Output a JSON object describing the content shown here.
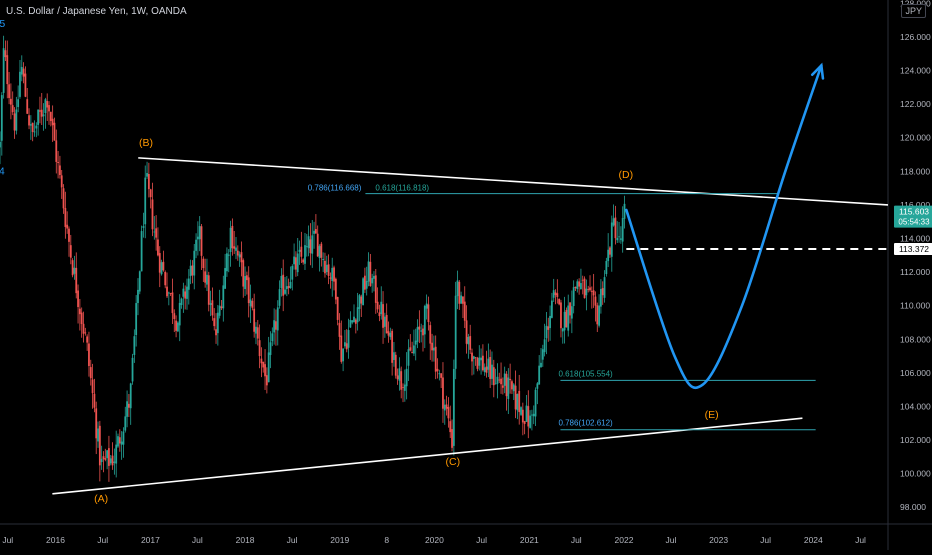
{
  "header": {
    "title": "U.S. Dollar / Japanese Yen, 1W, OANDA",
    "currency_badge": "JPY"
  },
  "chart_data": {
    "type": "candlestick",
    "title": "U.S. Dollar / Japanese Yen, 1W, OANDA",
    "ylim": [
      97.0,
      128.2
    ],
    "y_ticks": [
      98,
      100,
      102,
      104,
      106,
      108,
      110,
      112,
      114,
      116,
      118,
      120,
      122,
      124,
      126,
      128
    ],
    "y_tick_labels": [
      "98.000",
      "100.000",
      "102.000",
      "104.000",
      "106.000",
      "108.000",
      "110.000",
      "112.000",
      "114.000",
      "116.000",
      "118.000",
      "120.000",
      "122.000",
      "124.000",
      "126.000",
      "128.000"
    ],
    "xlim": [
      "2015-06-01",
      "2024-10-15"
    ],
    "x_ticks": [
      {
        "label": "Jul",
        "date": "2015-07-01"
      },
      {
        "label": "2016",
        "date": "2016-01-01"
      },
      {
        "label": "Jul",
        "date": "2016-07-01"
      },
      {
        "label": "2017",
        "date": "2017-01-01"
      },
      {
        "label": "Jul",
        "date": "2017-07-01"
      },
      {
        "label": "2018",
        "date": "2018-01-01"
      },
      {
        "label": "Jul",
        "date": "2018-07-01"
      },
      {
        "label": "2019",
        "date": "2019-01-01"
      },
      {
        "label": "8",
        "date": "2019-07-01"
      },
      {
        "label": "2020",
        "date": "2020-01-01"
      },
      {
        "label": "Jul",
        "date": "2020-07-01"
      },
      {
        "label": "2021",
        "date": "2021-01-01"
      },
      {
        "label": "Jul",
        "date": "2021-07-01"
      },
      {
        "label": "2022",
        "date": "2022-01-01"
      },
      {
        "label": "Jul",
        "date": "2022-07-01"
      },
      {
        "label": "2023",
        "date": "2023-01-01"
      },
      {
        "label": "Jul",
        "date": "2023-07-01"
      },
      {
        "label": "2024",
        "date": "2024-01-01"
      },
      {
        "label": "Jul",
        "date": "2024-07-01"
      }
    ],
    "price_path": [
      {
        "date": "2015-06-01",
        "price": 119.5
      },
      {
        "date": "2015-06-15",
        "price": 125.0
      },
      {
        "date": "2015-08-01",
        "price": 120.5
      },
      {
        "date": "2015-08-20",
        "price": 124.5
      },
      {
        "date": "2015-10-01",
        "price": 120.0
      },
      {
        "date": "2015-12-01",
        "price": 122.5
      },
      {
        "date": "2016-03-01",
        "price": 113.0
      },
      {
        "date": "2016-05-01",
        "price": 107.5
      },
      {
        "date": "2016-06-24",
        "price": 100.5
      },
      {
        "date": "2016-08-15",
        "price": 101.0
      },
      {
        "date": "2016-10-15",
        "price": 104.5
      },
      {
        "date": "2016-12-15",
        "price": 117.5
      },
      {
        "date": "2017-02-01",
        "price": 113.0
      },
      {
        "date": "2017-04-15",
        "price": 109.0
      },
      {
        "date": "2017-07-10",
        "price": 114.0
      },
      {
        "date": "2017-09-08",
        "price": 108.0
      },
      {
        "date": "2017-11-06",
        "price": 114.5
      },
      {
        "date": "2018-01-15",
        "price": 110.5
      },
      {
        "date": "2018-03-23",
        "price": 105.5
      },
      {
        "date": "2018-05-21",
        "price": 111.0
      },
      {
        "date": "2018-07-20",
        "price": 112.5
      },
      {
        "date": "2018-10-01",
        "price": 114.0
      },
      {
        "date": "2018-12-20",
        "price": 111.0
      },
      {
        "date": "2019-01-03",
        "price": 107.0
      },
      {
        "date": "2019-04-24",
        "price": 112.0
      },
      {
        "date": "2019-08-26",
        "price": 105.5
      },
      {
        "date": "2019-12-01",
        "price": 109.5
      },
      {
        "date": "2020-03-09",
        "price": 102.0
      },
      {
        "date": "2020-03-24",
        "price": 111.5
      },
      {
        "date": "2020-05-15",
        "price": 107.5
      },
      {
        "date": "2020-08-01",
        "price": 106.0
      },
      {
        "date": "2020-10-15",
        "price": 105.0
      },
      {
        "date": "2021-01-06",
        "price": 103.0
      },
      {
        "date": "2021-03-31",
        "price": 110.5
      },
      {
        "date": "2021-05-15",
        "price": 109.0
      },
      {
        "date": "2021-07-05",
        "price": 111.5
      },
      {
        "date": "2021-09-20",
        "price": 109.5
      },
      {
        "date": "2021-11-24",
        "price": 115.0
      },
      {
        "date": "2021-12-15",
        "price": 113.5
      },
      {
        "date": "2022-01-04",
        "price": 115.603
      }
    ],
    "labels_wave": [
      {
        "text": "5",
        "date": "2015-06-10",
        "price": 126.6,
        "color": "#2196f3"
      },
      {
        "text": "4",
        "date": "2015-06-08",
        "price": 117.8,
        "color": "#2196f3"
      },
      {
        "text": "(A)",
        "date": "2016-06-25",
        "price": 98.3,
        "color": "#ff9800"
      },
      {
        "text": "(B)",
        "date": "2016-12-15",
        "price": 119.5,
        "color": "#ff9800"
      },
      {
        "text": "(C)",
        "date": "2020-03-12",
        "price": 100.5,
        "color": "#ff9800"
      },
      {
        "text": "(D)",
        "date": "2022-01-08",
        "price": 117.6,
        "color": "#ff9800"
      },
      {
        "text": "(E)",
        "date": "2022-12-05",
        "price": 103.3,
        "color": "#ff9800"
      }
    ],
    "trendlines": [
      {
        "name": "upper",
        "from": {
          "date": "2016-11-15",
          "price": 118.8
        },
        "to": {
          "date": "2024-10-15",
          "price": 116.0
        },
        "color": "#ffffff"
      },
      {
        "name": "lower",
        "from": {
          "date": "2015-12-20",
          "price": 98.8
        },
        "to": {
          "date": "2023-11-20",
          "price": 103.3
        },
        "color": "#ffffff"
      }
    ],
    "fib_levels": [
      {
        "label_a": "0.786(116.668)",
        "label_b": "0.618(116.818)",
        "price": 116.668,
        "from": "2019-04-10",
        "to": "2023-08-15"
      },
      {
        "label_a": "0.618(105.554)",
        "price": 105.554,
        "from": "2021-05-01",
        "to": "2024-01-10"
      },
      {
        "label_a": "0.786(102.612)",
        "price": 102.612,
        "from": "2021-05-01",
        "to": "2024-01-10"
      }
    ],
    "projection": {
      "color": "#2196f3",
      "points": [
        {
          "date": "2022-01-10",
          "price": 115.7
        },
        {
          "date": "2022-07-15",
          "price": 107.0
        },
        {
          "date": "2022-11-01",
          "price": 105.3
        },
        {
          "date": "2023-04-01",
          "price": 110.0
        },
        {
          "date": "2023-09-15",
          "price": 118.0
        },
        {
          "date": "2024-02-01",
          "price": 124.3
        }
      ]
    },
    "price_markers": [
      {
        "label": "115.603",
        "sublabel": "05:54:33",
        "price": 115.603,
        "bg": "#26a69a"
      },
      {
        "label": "113.372",
        "price": 113.372,
        "bg": "#ffffff",
        "line": "dashed"
      }
    ]
  }
}
